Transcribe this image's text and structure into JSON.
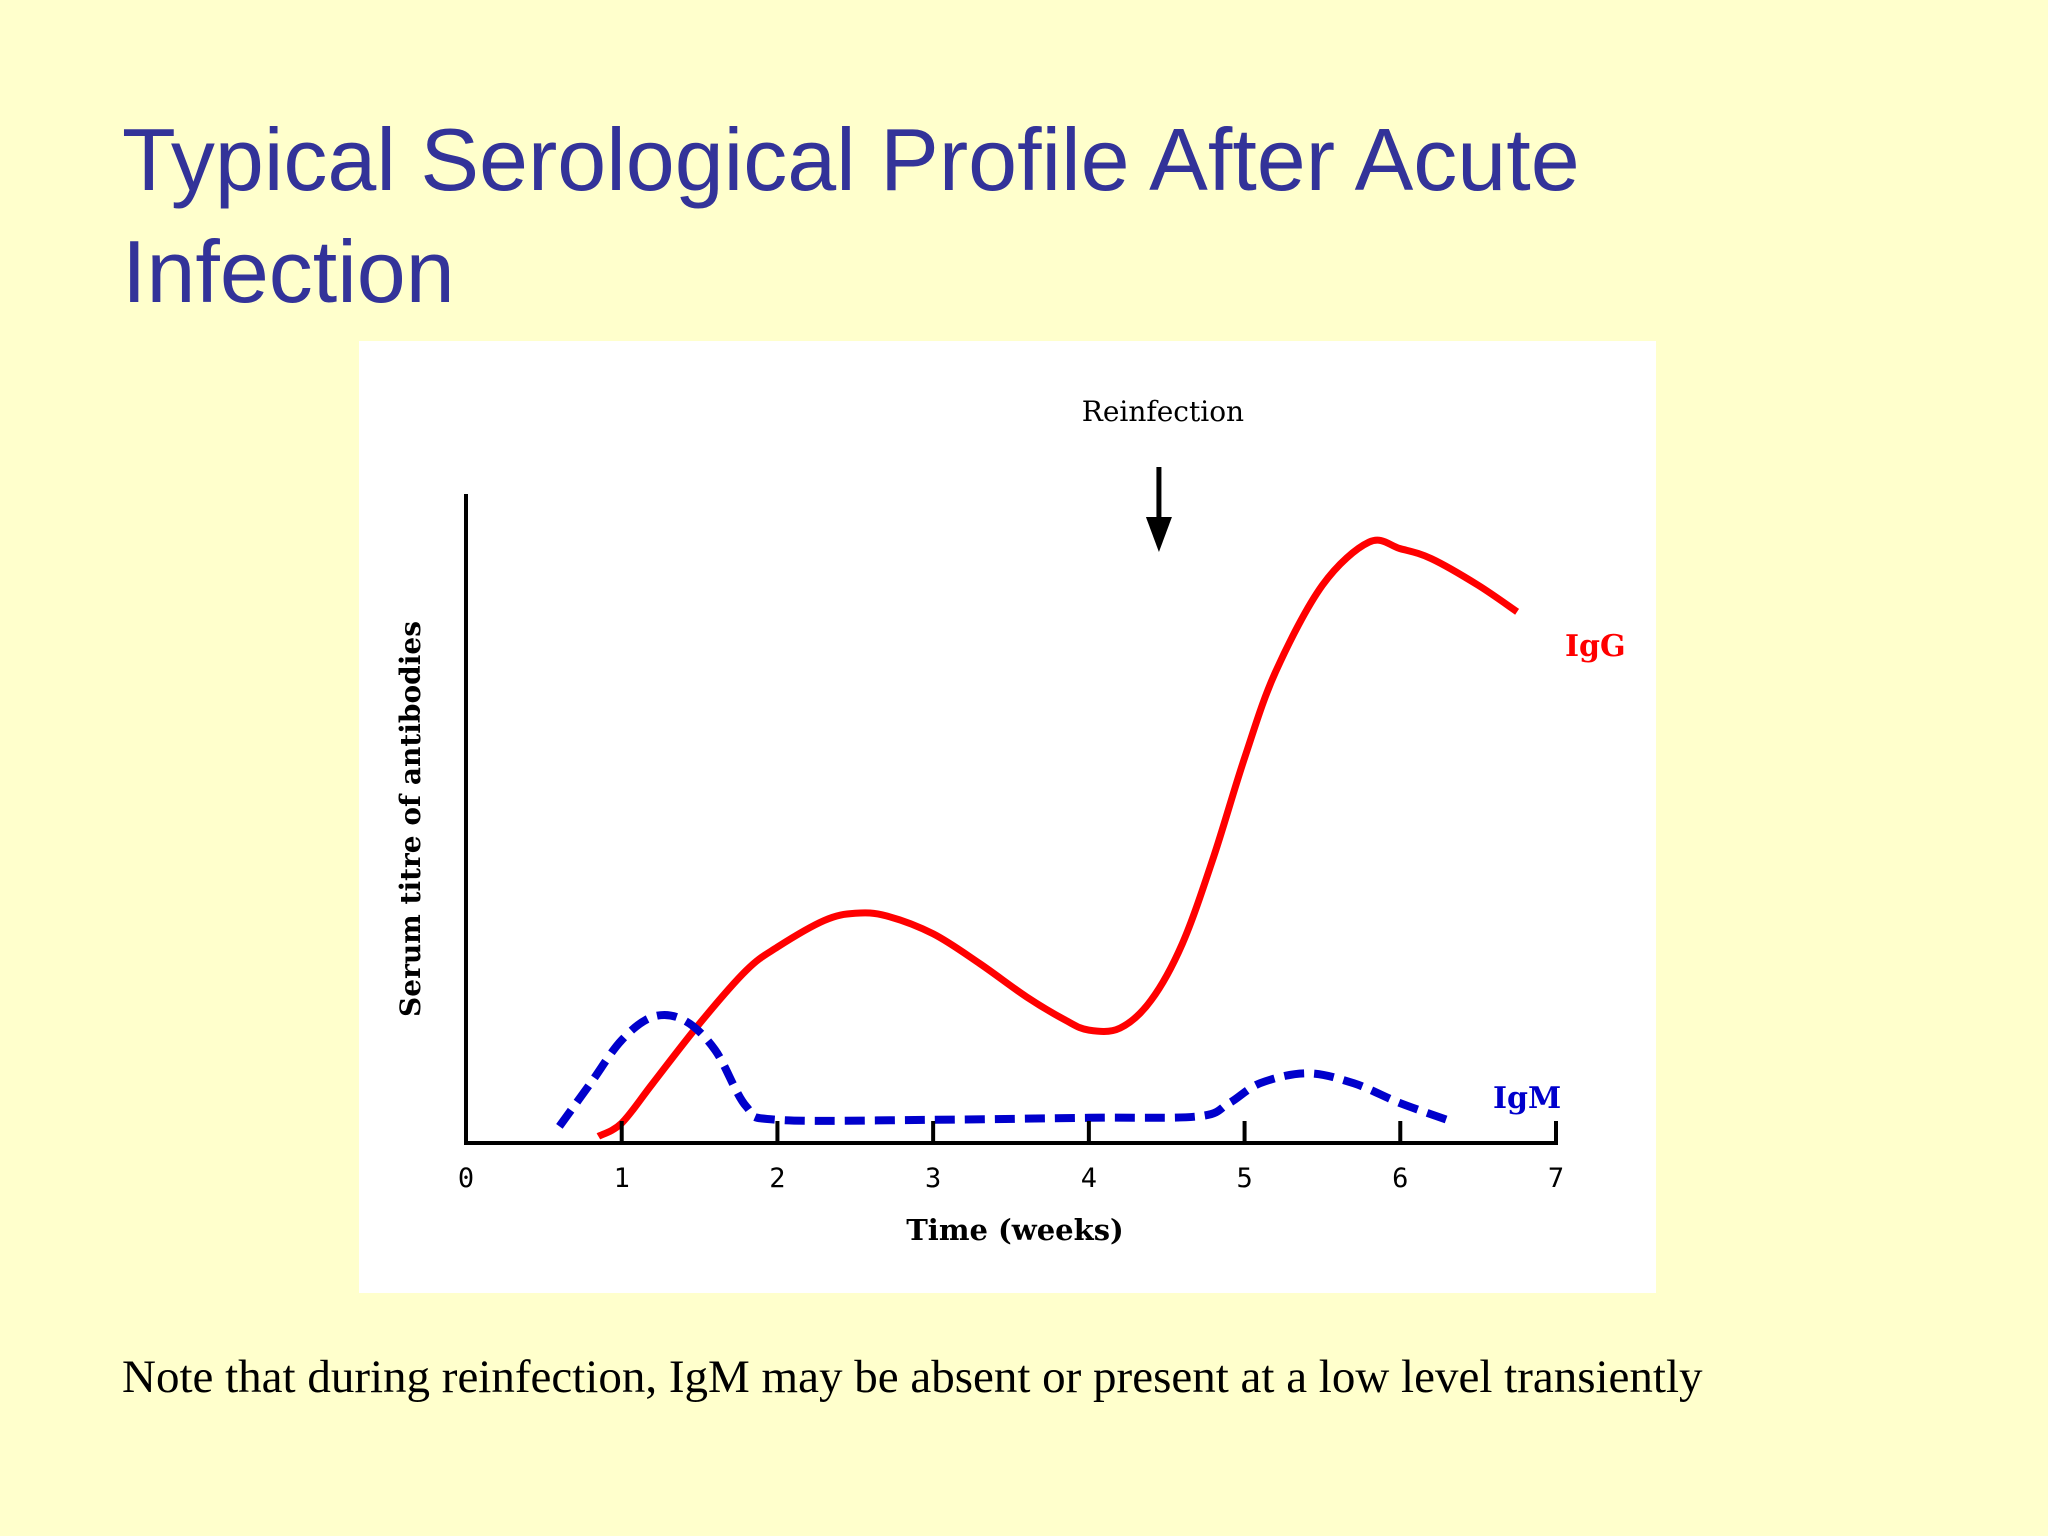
{
  "slide": {
    "title": "Typical Serological Profile After Acute Infection",
    "note": "Note that during reinfection, IgM may be absent or present at a low level transiently"
  },
  "chart_data": {
    "type": "line",
    "title": "",
    "xlabel": "Time (weeks)",
    "ylabel": "Serum titre of antibodies",
    "xlim": [
      0,
      7
    ],
    "ylim": [
      0,
      100
    ],
    "x_ticks": [
      0,
      1,
      2,
      3,
      4,
      5,
      6,
      7
    ],
    "y_tick_labels_shown": false,
    "grid": false,
    "legend": "inline labels at curve ends",
    "annotation": {
      "text": "Reinfection",
      "x": 4.45,
      "marker": "downward arrow"
    },
    "series": [
      {
        "name": "IgG",
        "color": "#ff0000",
        "style": "solid",
        "points": [
          [
            0.85,
            1
          ],
          [
            1.0,
            3
          ],
          [
            1.2,
            9
          ],
          [
            1.5,
            18
          ],
          [
            1.8,
            26
          ],
          [
            2.0,
            29.5
          ],
          [
            2.3,
            33.5
          ],
          [
            2.5,
            34.6
          ],
          [
            2.7,
            34.2
          ],
          [
            3.0,
            31.5
          ],
          [
            3.3,
            27
          ],
          [
            3.6,
            22
          ],
          [
            3.85,
            18.5
          ],
          [
            4.0,
            17
          ],
          [
            4.2,
            17.3
          ],
          [
            4.4,
            21.5
          ],
          [
            4.6,
            30
          ],
          [
            4.8,
            43
          ],
          [
            5.0,
            58
          ],
          [
            5.2,
            71
          ],
          [
            5.5,
            84
          ],
          [
            5.8,
            90.5
          ],
          [
            6.0,
            89.5
          ],
          [
            6.2,
            88
          ],
          [
            6.5,
            84
          ],
          [
            6.75,
            80
          ]
        ]
      },
      {
        "name": "IgM",
        "color": "#0000cc",
        "style": "dashed",
        "points": [
          [
            0.6,
            2.5
          ],
          [
            0.8,
            9
          ],
          [
            1.0,
            15.5
          ],
          [
            1.2,
            19
          ],
          [
            1.4,
            18.5
          ],
          [
            1.6,
            14
          ],
          [
            1.8,
            5.5
          ],
          [
            2.0,
            3.5
          ],
          [
            3.0,
            3.5
          ],
          [
            4.0,
            3.8
          ],
          [
            4.7,
            4
          ],
          [
            4.9,
            6
          ],
          [
            5.1,
            9
          ],
          [
            5.4,
            10.5
          ],
          [
            5.7,
            9
          ],
          [
            6.0,
            6
          ],
          [
            6.3,
            3.5
          ]
        ]
      }
    ]
  }
}
